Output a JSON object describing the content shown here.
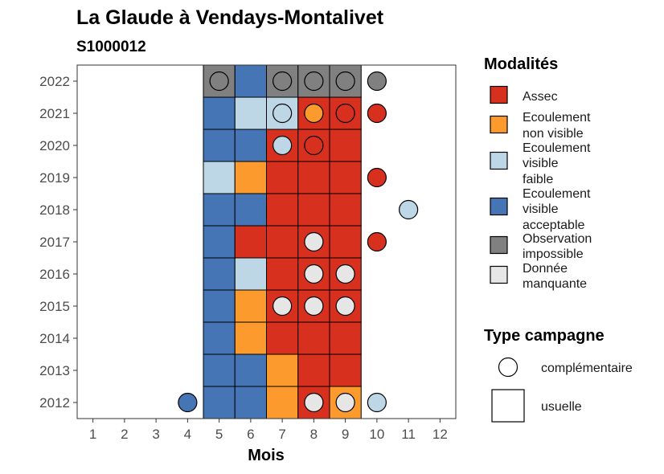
{
  "chart_data": {
    "type": "heatmap",
    "title": "La Glaude à Vendays-Montalivet",
    "subtitle": "S1000012",
    "xlabel": "Mois",
    "ylabel": "",
    "x_ticks": [
      "1",
      "2",
      "3",
      "4",
      "5",
      "6",
      "7",
      "8",
      "9",
      "10",
      "11",
      "12"
    ],
    "y_ticks": [
      "2012",
      "2013",
      "2014",
      "2015",
      "2016",
      "2017",
      "2018",
      "2019",
      "2020",
      "2021",
      "2022"
    ],
    "xlim": [
      0.5,
      12.5
    ],
    "ylim": [
      2011.5,
      2022.5
    ],
    "grid": false,
    "legend_placement": "right",
    "modalites": [
      {
        "key": "assec",
        "label": "Assec",
        "color": "#d7301f"
      },
      {
        "key": "nonvis",
        "label": "Ecoulement non visible",
        "color": "#fd9a2d"
      },
      {
        "key": "faible",
        "label": "Ecoulement visible faible",
        "color": "#bdd7e7"
      },
      {
        "key": "accept",
        "label": "Ecoulement visible acceptable",
        "color": "#4575b4"
      },
      {
        "key": "obsimp",
        "label": "Observation impossible",
        "color": "#808080"
      },
      {
        "key": "manq",
        "label": "Donnée manquante",
        "color": "#e6e6e6"
      }
    ],
    "type_campagne": {
      "title": "Type campagne",
      "complementaire": "complémentaire",
      "usuelle": "usuelle"
    },
    "usuelle": {
      "2022": [
        "obsimp",
        "accept",
        "obsimp",
        "obsimp",
        "obsimp"
      ],
      "2021": [
        "accept",
        "faible",
        "faible",
        "assec",
        "assec"
      ],
      "2020": [
        "accept",
        "accept",
        "assec",
        "assec",
        "assec"
      ],
      "2019": [
        "faible",
        "nonvis",
        "assec",
        "assec",
        "assec"
      ],
      "2018": [
        "accept",
        "accept",
        "assec",
        "assec",
        "assec"
      ],
      "2017": [
        "accept",
        "assec",
        "assec",
        "assec",
        "assec"
      ],
      "2016": [
        "accept",
        "faible",
        "assec",
        "assec",
        "assec"
      ],
      "2015": [
        "accept",
        "nonvis",
        "assec",
        "assec",
        "assec"
      ],
      "2014": [
        "accept",
        "nonvis",
        "assec",
        "assec",
        "assec"
      ],
      "2013": [
        "accept",
        "accept",
        "nonvis",
        "assec",
        "assec"
      ],
      "2012": [
        "accept",
        "accept",
        "nonvis",
        "assec",
        "nonvis"
      ]
    },
    "usuelle_months": [
      5,
      6,
      7,
      8,
      9
    ],
    "complementaire": [
      {
        "year": 2022,
        "month": 5,
        "mod": "obsimp"
      },
      {
        "year": 2022,
        "month": 7,
        "mod": "obsimp"
      },
      {
        "year": 2022,
        "month": 8,
        "mod": "obsimp"
      },
      {
        "year": 2022,
        "month": 9,
        "mod": "obsimp"
      },
      {
        "year": 2022,
        "month": 10,
        "mod": "obsimp"
      },
      {
        "year": 2021,
        "month": 7,
        "mod": "faible"
      },
      {
        "year": 2021,
        "month": 8,
        "mod": "nonvis"
      },
      {
        "year": 2021,
        "month": 9,
        "mod": "assec"
      },
      {
        "year": 2021,
        "month": 10,
        "mod": "assec"
      },
      {
        "year": 2020,
        "month": 7,
        "mod": "faible"
      },
      {
        "year": 2020,
        "month": 8,
        "mod": "assec"
      },
      {
        "year": 2019,
        "month": 10,
        "mod": "assec"
      },
      {
        "year": 2018,
        "month": 11,
        "mod": "faible"
      },
      {
        "year": 2017,
        "month": 8,
        "mod": "manq"
      },
      {
        "year": 2017,
        "month": 10,
        "mod": "assec"
      },
      {
        "year": 2016,
        "month": 8,
        "mod": "manq"
      },
      {
        "year": 2016,
        "month": 9,
        "mod": "manq"
      },
      {
        "year": 2015,
        "month": 7,
        "mod": "manq"
      },
      {
        "year": 2015,
        "month": 8,
        "mod": "manq"
      },
      {
        "year": 2015,
        "month": 9,
        "mod": "manq"
      },
      {
        "year": 2012,
        "month": 4,
        "mod": "accept"
      },
      {
        "year": 2012,
        "month": 8,
        "mod": "manq"
      },
      {
        "year": 2012,
        "month": 9,
        "mod": "manq"
      },
      {
        "year": 2012,
        "month": 10,
        "mod": "faible"
      }
    ]
  }
}
